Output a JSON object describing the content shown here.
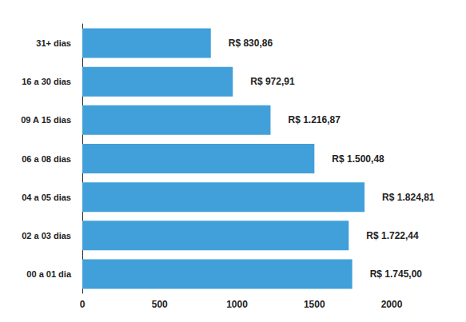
{
  "chart_data": {
    "type": "bar",
    "orientation": "horizontal",
    "categories": [
      "00 a 01 dia",
      "02 a 03 dias",
      "04 a 05 dias",
      "06 a 08 dias",
      "09 A 15 dias",
      "16 a 30 dias",
      "31+ dias"
    ],
    "values": [
      1745.0,
      1722.44,
      1824.81,
      1500.48,
      1216.87,
      972.91,
      830.86
    ],
    "value_labels": [
      "R$ 1.745,00",
      "R$ 1.722,44",
      "R$ 1.824,81",
      "R$ 1.500,48",
      "R$ 1.216,87",
      "R$ 972,91",
      "R$ 830,86"
    ],
    "color": "#41a0d9",
    "xlim": [
      0,
      2000
    ],
    "xticks": [
      0,
      500,
      1000,
      1500,
      2000
    ],
    "grid": false,
    "data_labels": true
  }
}
